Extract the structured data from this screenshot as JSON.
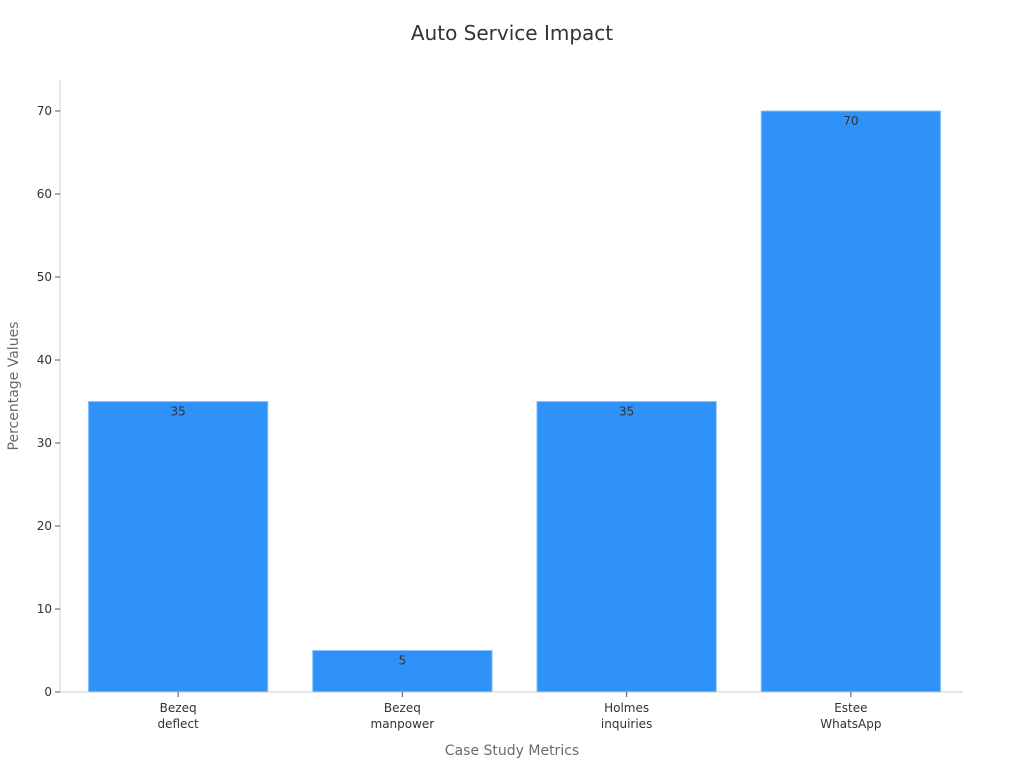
{
  "chart_data": {
    "type": "bar",
    "title": "Auto Service Impact",
    "xlabel": "Case Study Metrics",
    "ylabel": "Percentage Values",
    "categories": [
      [
        "Bezeq",
        "deflect"
      ],
      [
        "Bezeq",
        "manpower"
      ],
      [
        "Holmes",
        "inquiries"
      ],
      [
        "Estee",
        "WhatsApp"
      ]
    ],
    "values": [
      35,
      5,
      35,
      70
    ],
    "data_labels": [
      "35",
      "5",
      "35",
      "70"
    ],
    "ylim": [
      0,
      74
    ],
    "yticks": [
      0,
      10,
      20,
      30,
      40,
      50,
      60,
      70
    ],
    "grid": false,
    "legend": "none",
    "colors": {
      "bar": "#2f92f8",
      "bar_edge": "#8cc4fb"
    }
  }
}
